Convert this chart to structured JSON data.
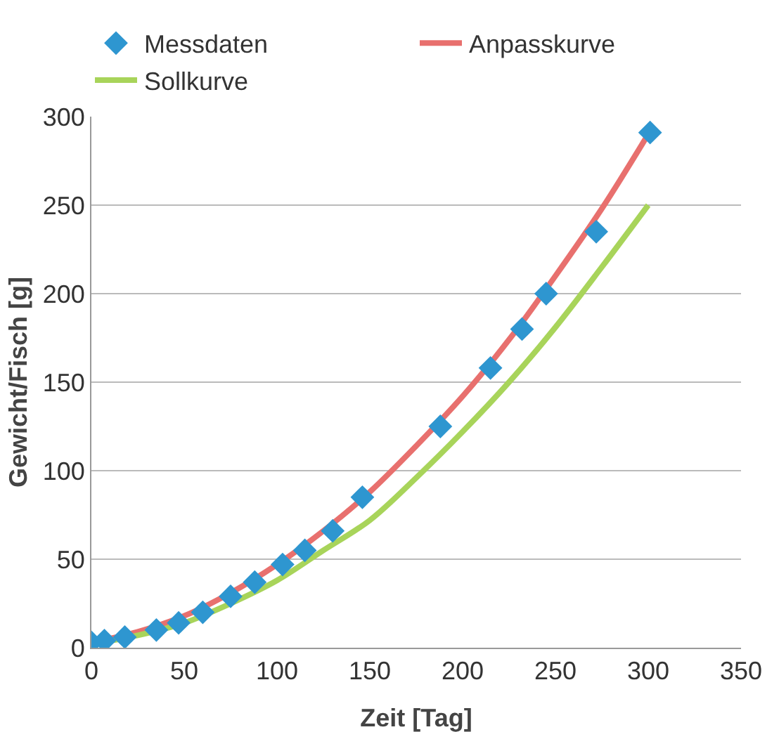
{
  "chart_data": {
    "type": "scatter",
    "xlabel": "Zeit [Tag]",
    "ylabel": "Gewicht/Fisch [g]",
    "xlim": [
      0,
      350
    ],
    "xticks": [
      0,
      50,
      100,
      150,
      200,
      250,
      300,
      350
    ],
    "ylim": [
      0,
      300
    ],
    "yticks": [
      0,
      50,
      100,
      150,
      200,
      250,
      300
    ],
    "grid": "y",
    "legend": "top",
    "series": [
      {
        "name": "Messdaten",
        "marker": "diamond",
        "color": "#2e96d0",
        "x": [
          0,
          7,
          18,
          35,
          47,
          60,
          75,
          88,
          103,
          115,
          130,
          146,
          188,
          215,
          232,
          245,
          272,
          301
        ],
        "values": [
          3,
          4,
          6,
          10,
          14,
          20,
          29,
          37,
          47,
          55,
          66,
          85,
          125,
          158,
          180,
          200,
          235,
          291
        ]
      },
      {
        "name": "Anpasskurve",
        "type": "line",
        "color": "#e8706e",
        "x": [
          0,
          25,
          50,
          75,
          100,
          125,
          150,
          175,
          200,
          225,
          250,
          275,
          300
        ],
        "values": [
          3,
          9,
          18,
          31,
          47,
          66,
          88,
          114,
          142,
          174,
          210,
          248,
          290
        ]
      },
      {
        "name": "Sollkurve",
        "type": "line",
        "color": "#a8d45a",
        "x": [
          0,
          25,
          50,
          75,
          100,
          125,
          150,
          175,
          200,
          225,
          250,
          275,
          300
        ],
        "values": [
          2,
          7,
          14,
          25,
          38,
          55,
          72,
          96,
          122,
          150,
          181,
          215,
          250
        ]
      }
    ]
  }
}
